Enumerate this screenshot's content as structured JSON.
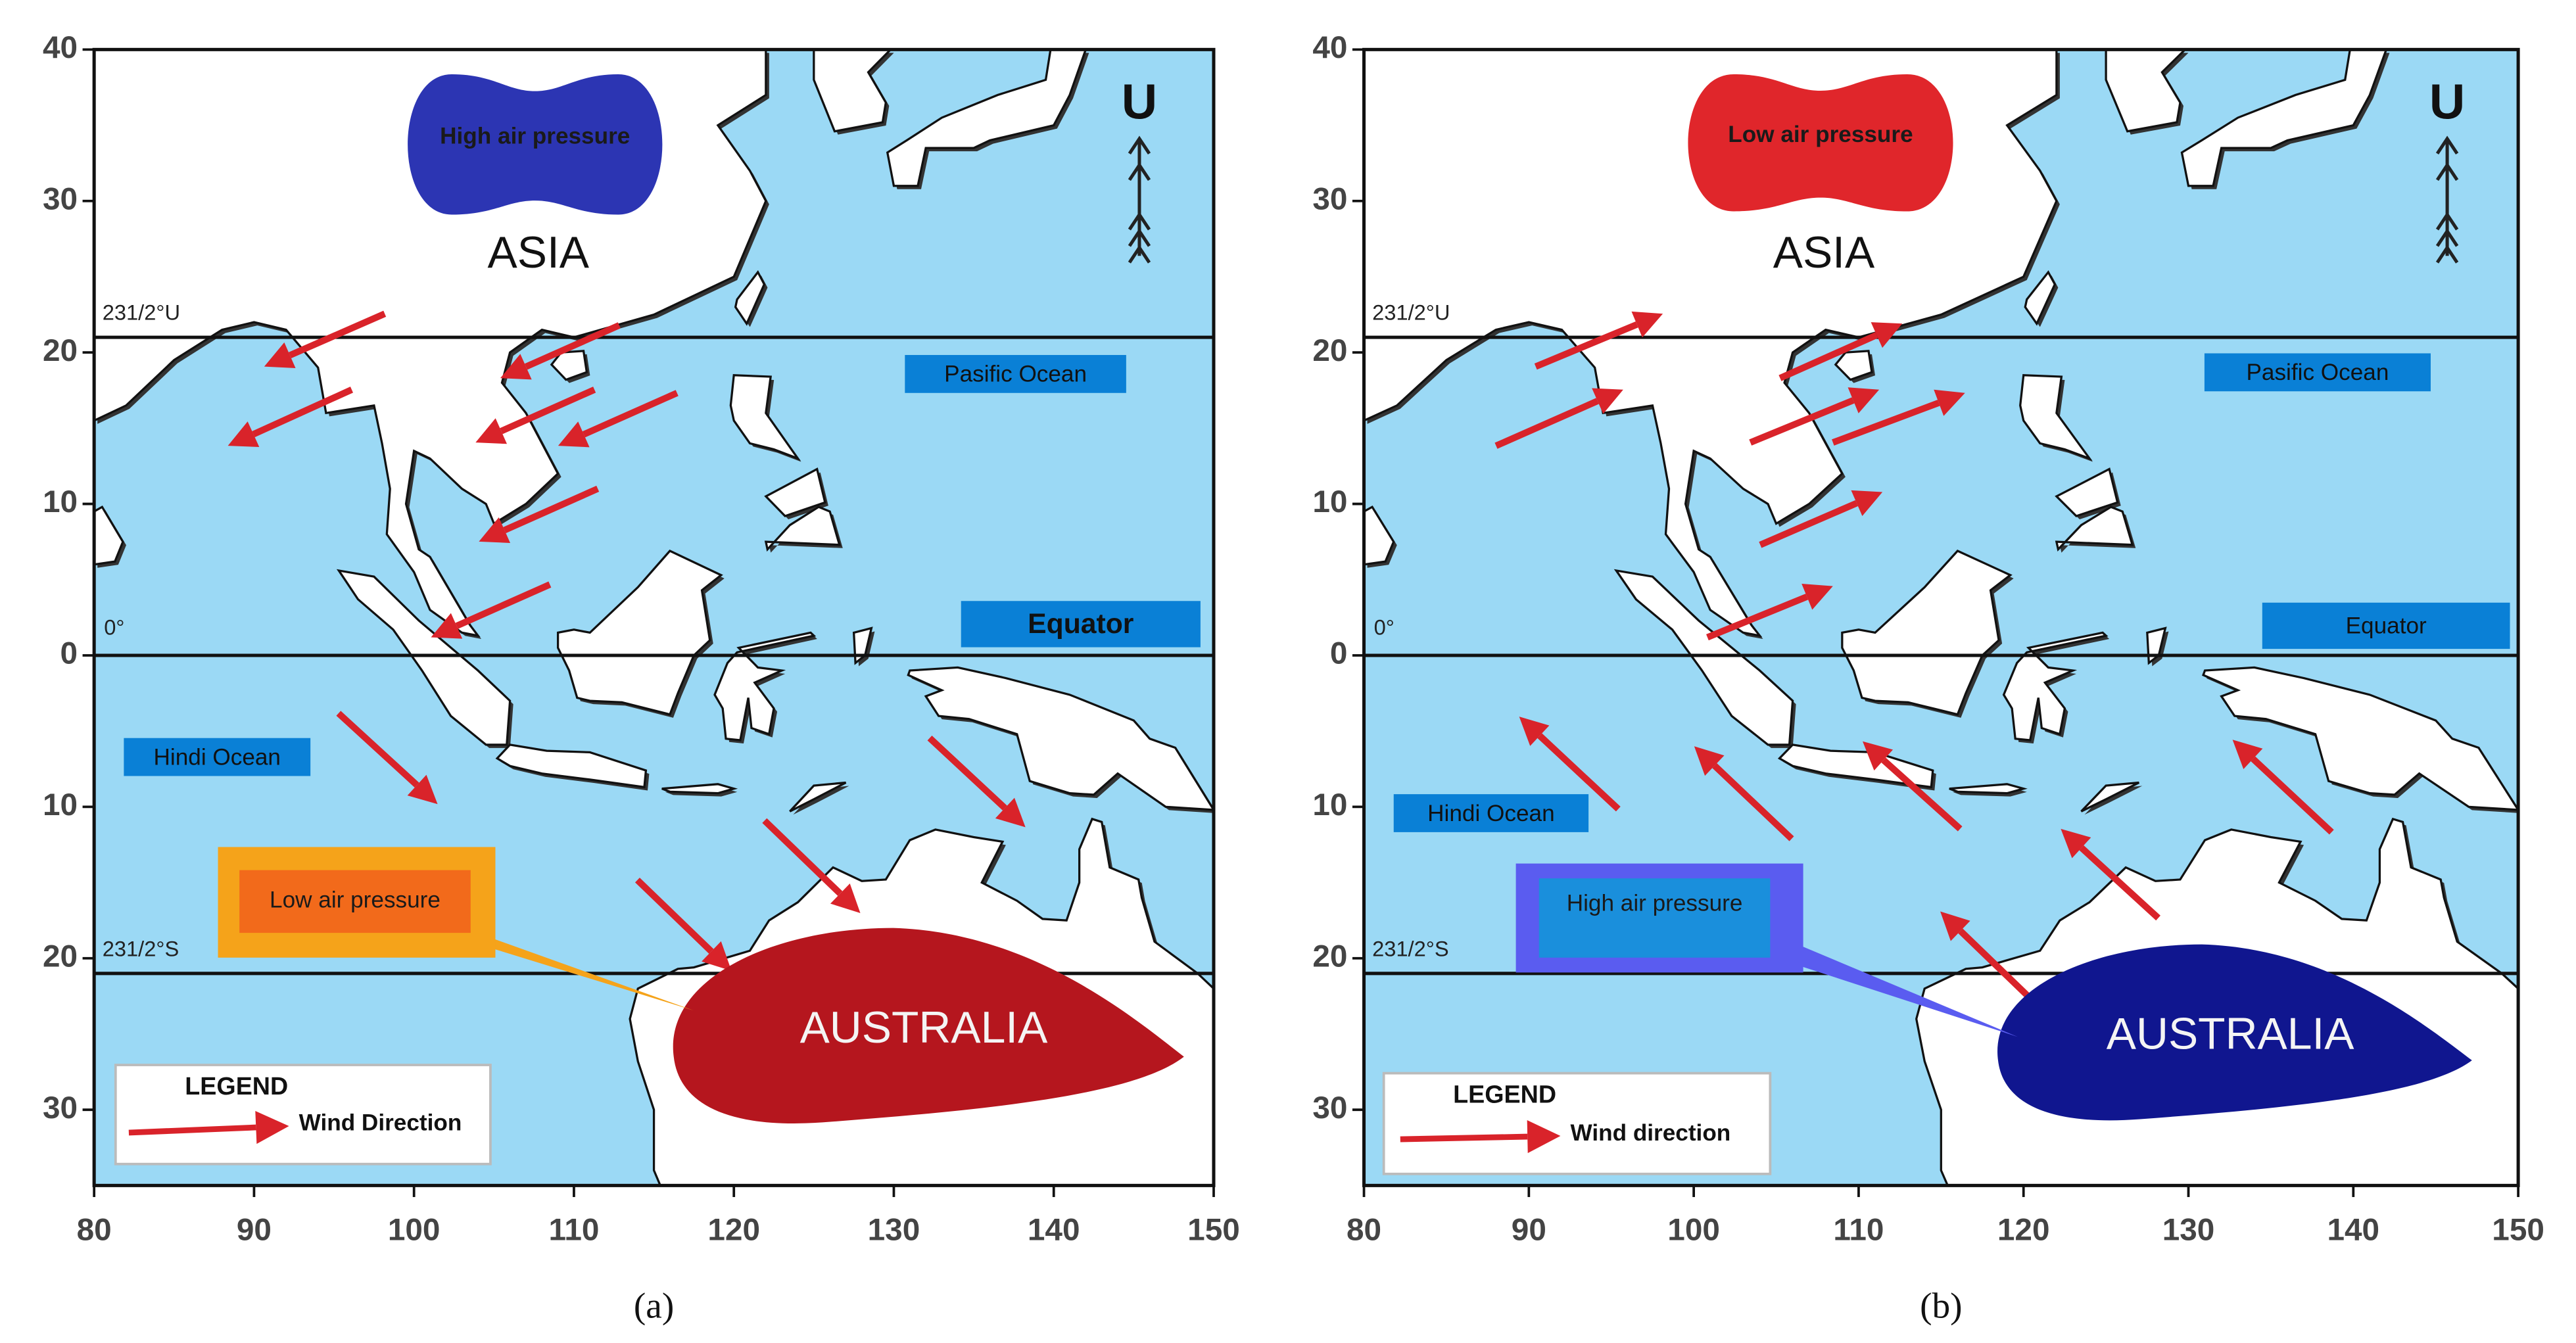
{
  "panels": [
    {
      "label": "(a)",
      "xlim": [
        80,
        150
      ],
      "ylim": [
        -35,
        40
      ],
      "xticks": [
        80,
        90,
        100,
        110,
        120,
        130,
        140,
        150
      ],
      "yticks": [
        40,
        30,
        20,
        10,
        0,
        {
          "value": -10,
          "label": "10"
        },
        {
          "value": -20,
          "label": "20"
        },
        {
          "value": -30,
          "label": "30"
        }
      ],
      "texts": {
        "pressure_asia": "High air pressure",
        "asia": "ASIA",
        "pacific": "Pasific Ocean",
        "equator": "Equator",
        "hindi": "Hindi Ocean",
        "pressure_australia": "Low air pressure",
        "australia": "AUSTRALIA",
        "legend_title": "LEGEND",
        "legend_item": "Wind Direction",
        "tropic_north": "231/2°U",
        "tropic_south": "231/2°S",
        "equator_mark": "0°",
        "north": "U"
      }
    },
    {
      "label": "(b)",
      "xlim": [
        80,
        150
      ],
      "ylim": [
        -35,
        40
      ],
      "xticks": [
        80,
        90,
        100,
        110,
        120,
        130,
        140,
        150
      ],
      "yticks": [
        40,
        30,
        20,
        10,
        0,
        {
          "value": -10,
          "label": "10"
        },
        {
          "value": -20,
          "label": "20"
        },
        {
          "value": -30,
          "label": "30"
        }
      ],
      "texts": {
        "pressure_asia": "Low air pressure",
        "asia": "ASIA",
        "pacific": "Pasific Ocean",
        "equator": "Equator",
        "hindi": "Hindi Ocean",
        "pressure_australia": "High air pressure",
        "australia": "AUSTRALIA",
        "legend_title": "LEGEND",
        "legend_item": "Wind direction",
        "tropic_north": "231/2°U",
        "tropic_south": "231/2°S",
        "equator_mark": "0°",
        "north": "U"
      }
    }
  ]
}
